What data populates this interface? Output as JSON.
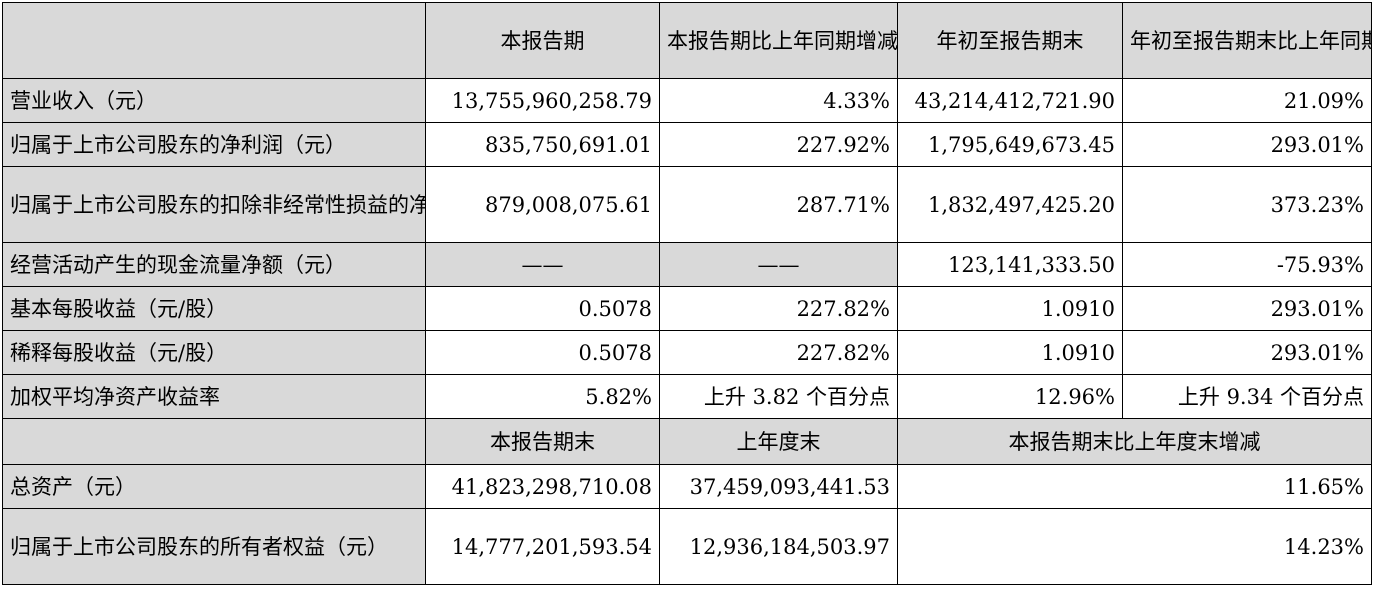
{
  "header": {
    "corner": "",
    "col1": "本报告期",
    "col2": "本报告期比上年同期增减",
    "col3": "年初至报告期末",
    "col4": "年初至报告期末比上年同期增减"
  },
  "rows": [
    {
      "label": "营业收入（元）",
      "v1": "13,755,960,258.79",
      "v2": "4.33%",
      "v3": "43,214,412,721.90",
      "v4": "21.09%"
    },
    {
      "label": "归属于上市公司股东的净利润（元）",
      "v1": "835,750,691.01",
      "v2": "227.92%",
      "v3": "1,795,649,673.45",
      "v4": "293.01%"
    },
    {
      "label": "归属于上市公司股东的扣除非经常性损益的净利润（元）",
      "v1": "879,008,075.61",
      "v2": "287.71%",
      "v3": "1,832,497,425.20",
      "v4": "373.23%"
    },
    {
      "label": "经营活动产生的现金流量净额（元）",
      "v1": "——",
      "v2": "——",
      "v3": "123,141,333.50",
      "v4": "-75.93%"
    },
    {
      "label": "基本每股收益（元/股）",
      "v1": "0.5078",
      "v2": "227.82%",
      "v3": "1.0910",
      "v4": "293.01%"
    },
    {
      "label": "稀释每股收益（元/股）",
      "v1": "0.5078",
      "v2": "227.82%",
      "v3": "1.0910",
      "v4": "293.01%"
    },
    {
      "label": "加权平均净资产收益率",
      "v1": "5.82%",
      "v2": "上升 3.82 个百分点",
      "v3": "12.96%",
      "v4": "上升 9.34 个百分点"
    }
  ],
  "subheader": {
    "corner": "",
    "col1": "本报告期末",
    "col2": "上年度末",
    "col3": "本报告期末比上年度末增减"
  },
  "balance_rows": [
    {
      "label": "总资产（元）",
      "v1": "41,823,298,710.08",
      "v2": "37,459,093,441.53",
      "v3": "11.65%"
    },
    {
      "label": "归属于上市公司股东的所有者权益（元）",
      "v1": "14,777,201,593.54",
      "v2": "12,936,184,503.97",
      "v3": "14.23%"
    }
  ],
  "colors": {
    "header_fill": "#d9d9d9",
    "border": "#000000"
  }
}
